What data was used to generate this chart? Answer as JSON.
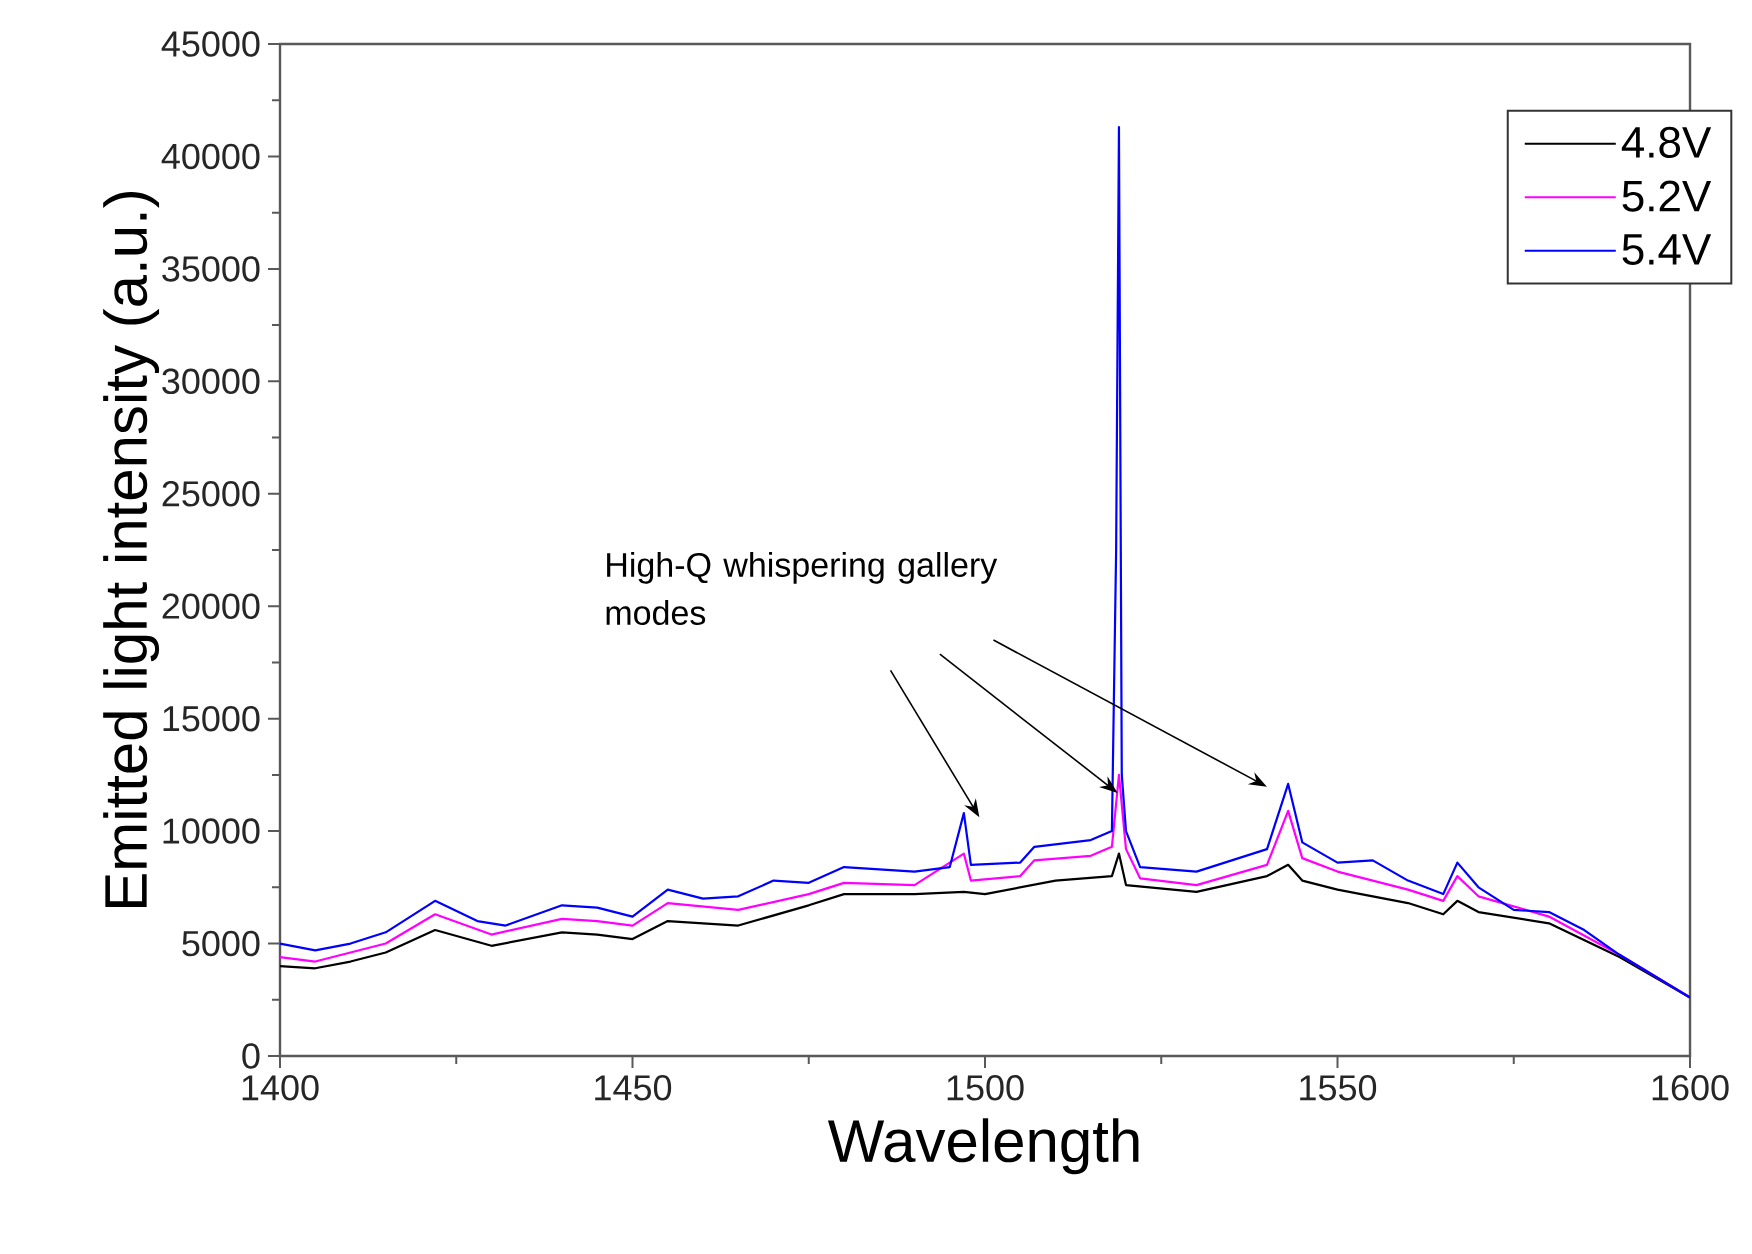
{
  "chart_data": {
    "type": "line",
    "xlabel": "Wavelength",
    "ylabel": "Emitted light intensity (a.u.)",
    "xlim": [
      1400,
      1600
    ],
    "ylim": [
      0,
      45000
    ],
    "xticks": [
      1400,
      1450,
      1500,
      1550,
      1600
    ],
    "yticks": [
      0,
      5000,
      10000,
      15000,
      20000,
      25000,
      30000,
      35000,
      40000,
      45000
    ],
    "legend": "top right",
    "grid": false,
    "annotations": [
      "High-Q whispering gallery modes"
    ],
    "series": [
      {
        "name": "4.8V",
        "color": "#000000",
        "x": [
          1400,
          1405,
          1410,
          1415,
          1422,
          1430,
          1440,
          1445,
          1450,
          1455,
          1465,
          1475,
          1480,
          1490,
          1497,
          1500,
          1510,
          1518,
          1519,
          1520,
          1530,
          1540,
          1543,
          1545,
          1550,
          1560,
          1565,
          1567,
          1570,
          1580,
          1590,
          1600
        ],
        "values": [
          4000,
          3900,
          4200,
          4600,
          5600,
          4900,
          5500,
          5400,
          5200,
          6000,
          5800,
          6700,
          7200,
          7200,
          7300,
          7200,
          7800,
          8000,
          9000,
          7600,
          7300,
          8000,
          8500,
          7800,
          7400,
          6800,
          6300,
          6900,
          6400,
          5900,
          4400,
          2600
        ]
      },
      {
        "name": "5.2V",
        "color": "#ff00ff",
        "x": [
          1400,
          1405,
          1410,
          1415,
          1422,
          1430,
          1440,
          1445,
          1450,
          1455,
          1465,
          1475,
          1480,
          1490,
          1497,
          1498,
          1505,
          1507,
          1515,
          1518,
          1519,
          1520,
          1522,
          1530,
          1540,
          1543,
          1545,
          1550,
          1560,
          1565,
          1567,
          1570,
          1580,
          1590,
          1600
        ],
        "values": [
          4400,
          4200,
          4600,
          5000,
          6300,
          5400,
          6100,
          6000,
          5800,
          6800,
          6500,
          7200,
          7700,
          7600,
          9000,
          7800,
          8000,
          8700,
          8900,
          9300,
          12500,
          9200,
          7900,
          7600,
          8500,
          10900,
          8800,
          8200,
          7400,
          6900,
          8000,
          7100,
          6200,
          4500,
          2600
        ]
      },
      {
        "name": "5.4V",
        "color": "#0000ff",
        "x": [
          1400,
          1405,
          1410,
          1415,
          1422,
          1428,
          1432,
          1440,
          1445,
          1450,
          1455,
          1460,
          1465,
          1470,
          1475,
          1480,
          1490,
          1495,
          1497,
          1498,
          1505,
          1507,
          1515,
          1518,
          1518.6,
          1519,
          1519.4,
          1520,
          1522,
          1530,
          1535,
          1540,
          1543,
          1545,
          1550,
          1555,
          1560,
          1565,
          1567,
          1570,
          1575,
          1580,
          1585,
          1590,
          1600
        ],
        "values": [
          5000,
          4700,
          5000,
          5500,
          6900,
          6000,
          5800,
          6700,
          6600,
          6200,
          7400,
          7000,
          7100,
          7800,
          7700,
          8400,
          8200,
          8400,
          10800,
          8500,
          8600,
          9300,
          9600,
          10000,
          22500,
          41300,
          12500,
          10000,
          8400,
          8200,
          8700,
          9200,
          12100,
          9500,
          8600,
          8700,
          7800,
          7200,
          8600,
          7500,
          6500,
          6400,
          5600,
          4500,
          2600
        ]
      }
    ]
  }
}
